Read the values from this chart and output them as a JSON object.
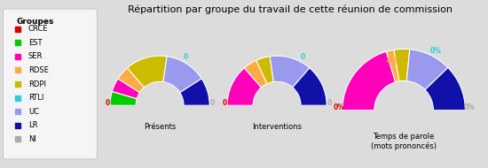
{
  "title": "Répartition par groupe du travail de cette réunion de commission",
  "bg": "#dcdcdc",
  "legend_bg": "#f5f5f5",
  "groups": [
    "CRCE",
    "EST",
    "SER",
    "RDSE",
    "RDPI",
    "RTLI",
    "UC",
    "LR",
    "NI"
  ],
  "colors": [
    "#dd0000",
    "#00cc00",
    "#ff00bb",
    "#ffaa44",
    "#ccbb00",
    "#33ccdd",
    "#9999ee",
    "#1111aa",
    "#aaaaaa"
  ],
  "presents": [
    0,
    1,
    1,
    1,
    3,
    0,
    3,
    2,
    0
  ],
  "interventions": [
    0,
    0,
    3,
    1,
    1,
    0,
    3,
    3,
    0
  ],
  "temps_parole": [
    0,
    0,
    40,
    4,
    8,
    0,
    22,
    24,
    0
  ],
  "chart_labels": [
    "Présents",
    "Interventions",
    "Temps de parole\n(mots prononcés)"
  ],
  "figsize": [
    5.5,
    1.9
  ],
  "dpi": 100
}
